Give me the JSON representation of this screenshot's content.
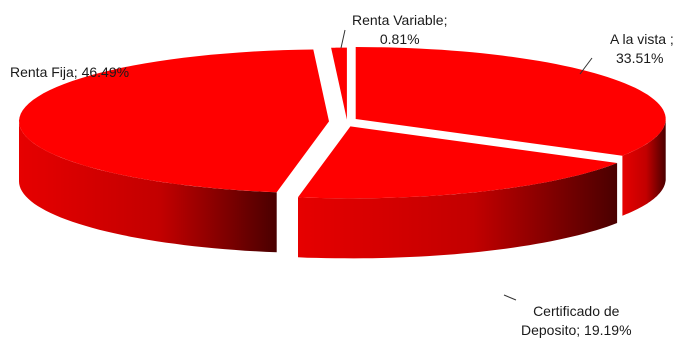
{
  "chart_data": {
    "type": "pie",
    "style": "3d-exploded",
    "title": "",
    "slices": [
      {
        "label": "A la vista",
        "value": 33.51,
        "color": "#ff0000"
      },
      {
        "label": "Certificado de Deposito",
        "value": 19.19,
        "color": "#ff0000"
      },
      {
        "label": "Renta Fija",
        "value": 46.49,
        "color": "#ff0000"
      },
      {
        "label": "Renta Variable",
        "value": 0.81,
        "color": "#ff0000"
      }
    ]
  },
  "labels": {
    "vista_line1": "A la vista ;",
    "vista_line2": "33.51%",
    "cdt_line1": "Certificado de",
    "cdt_line2": "Deposito; 19.19%",
    "fija": "Renta Fija; 46.49%",
    "variable_line1": "Renta Variable;",
    "variable_line2": "0.81%"
  }
}
